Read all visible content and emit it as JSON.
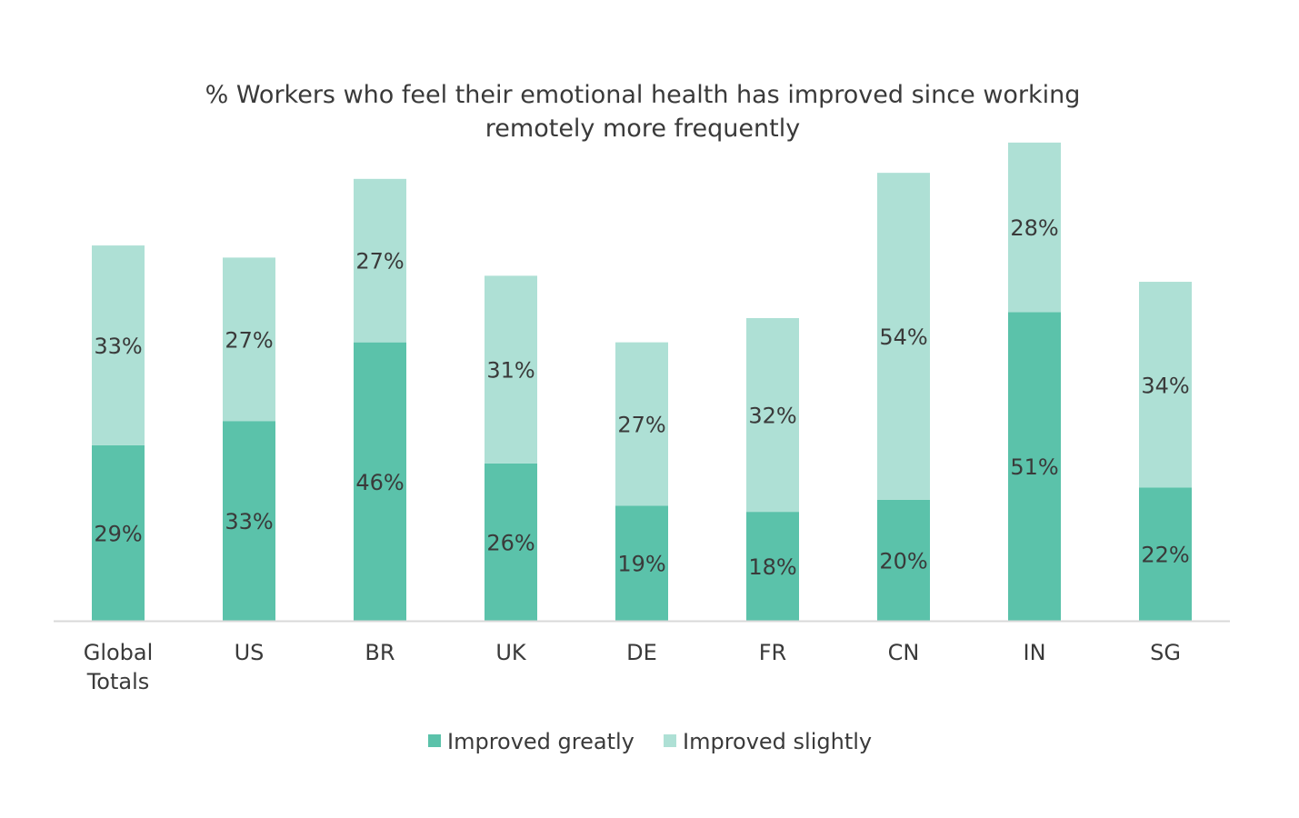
{
  "chart_data": {
    "type": "bar",
    "stacked": true,
    "title": "% Workers who feel their emotional health has improved since working remotely more frequently",
    "title_lines": [
      "% Workers who feel their emotional health has improved since working",
      "remotely more frequently"
    ],
    "categories": [
      "Global Totals",
      "US",
      "BR",
      "UK",
      "DE",
      "FR",
      "CN",
      "IN",
      "SG"
    ],
    "category_lines": [
      [
        "Global",
        "Totals"
      ],
      [
        "US"
      ],
      [
        "BR"
      ],
      [
        "UK"
      ],
      [
        "DE"
      ],
      [
        "FR"
      ],
      [
        "CN"
      ],
      [
        "IN"
      ],
      [
        "SG"
      ]
    ],
    "series": [
      {
        "name": "Improved greatly",
        "color": "#5bc2aa",
        "values": [
          29,
          33,
          46,
          26,
          19,
          18,
          20,
          51,
          22
        ]
      },
      {
        "name": "Improved slightly",
        "color": "#aee0d5",
        "values": [
          33,
          27,
          27,
          31,
          27,
          32,
          54,
          28,
          34
        ]
      }
    ],
    "data_labels": true,
    "data_label_suffix": "%",
    "ylim": [
      0,
      80
    ],
    "grid": false,
    "y_axis_shown": false,
    "legend": "bottom"
  }
}
